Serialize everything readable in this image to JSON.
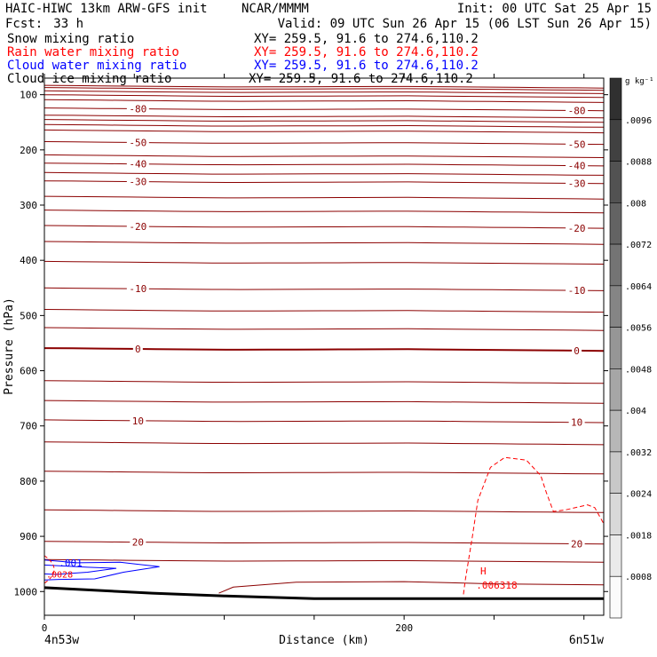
{
  "header": {
    "model": "HAIC-HIWC 13km ARW-GFS init",
    "org": "NCAR/MMMM",
    "init": "Init: 00 UTC Sat 25 Apr 15",
    "fcst_label": "Fcst:",
    "fcst_value": "33 h",
    "valid": "Valid: 09 UTC Sun 26 Apr 15 (06 LST Sun 26 Apr 15)"
  },
  "fields": [
    {
      "name": "Snow mixing ratio",
      "xy": "XY= 259.5, 91.6 to 274.6,110.2",
      "color": "#000000"
    },
    {
      "name": "Rain water mixing ratio",
      "xy": "XY= 259.5, 91.6 to 274.6,110.2",
      "color": "#ff0000"
    },
    {
      "name": "Cloud water mixing ratio",
      "xy": "XY= 259.5, 91.6 to 274.6,110.2",
      "color": "#0000ff"
    },
    {
      "name": "Cloud ice mixing ratio",
      "xy": "XY= 259.5, 91.6 to 274.6,110.2",
      "color": "#000000"
    }
  ],
  "chart_data": {
    "type": "line",
    "xlabel": "Distance (km)",
    "ylabel": "Pressure (hPa)",
    "xlim": [
      0,
      311
    ],
    "ylim": [
      1043,
      70
    ],
    "x_ticks": [
      0,
      200
    ],
    "y_ticks": [
      100,
      200,
      300,
      400,
      500,
      600,
      700,
      800,
      900,
      1000
    ],
    "x_endpoints": {
      "left": "4n53w",
      "right": "6n51w"
    },
    "colorbar": {
      "unit": "g kg⁻¹",
      "labels": [
        ".0096",
        ".0088",
        ".008",
        ".0072",
        ".0064",
        ".0056",
        ".0048",
        ".004",
        ".0032",
        ".0024",
        ".0018",
        ".0008"
      ]
    },
    "isotherm_color": "#8b0000",
    "isotherms": [
      {
        "label": "-80",
        "p": 127
      },
      {
        "label": "-50",
        "p": 188
      },
      {
        "label": "-40",
        "p": 227
      },
      {
        "label": "-30",
        "p": 259
      },
      {
        "label": "-20",
        "p": 340
      },
      {
        "label": "-10",
        "p": 453
      },
      {
        "label": "0",
        "p": 562
      },
      {
        "label": "10",
        "p": 692
      },
      {
        "label": "20",
        "p": 912
      }
    ],
    "isotherm_offsets": [
      {
        "x": 0,
        "dp": -3
      },
      {
        "x": 100,
        "dp": 0
      },
      {
        "x": 200,
        "dp": -1
      },
      {
        "x": 311,
        "dp": 2
      }
    ],
    "isotherm_label_x": [
      52,
      296
    ],
    "extra_isotherms_p": [
      86,
      90,
      96,
      103,
      112,
      140,
      148,
      157,
      167,
      212,
      244,
      287,
      312,
      369,
      405,
      492,
      525,
      621,
      657,
      732,
      785,
      855,
      945
    ],
    "surface_line": {
      "color": "#000000",
      "points": [
        [
          0,
          993
        ],
        [
          60,
          1003
        ],
        [
          100,
          1008
        ],
        [
          150,
          1013
        ],
        [
          200,
          1013
        ],
        [
          250,
          1013
        ],
        [
          311,
          1013
        ]
      ]
    },
    "warm_layer": {
      "color": "#8b0000",
      "points": [
        [
          97,
          1003
        ],
        [
          105,
          992
        ],
        [
          140,
          983
        ],
        [
          200,
          982
        ],
        [
          250,
          986
        ],
        [
          311,
          988
        ]
      ]
    },
    "rain_contour": {
      "color": "#ff0000",
      "points": [
        [
          233,
          1005
        ],
        [
          234,
          980
        ],
        [
          238,
          900
        ],
        [
          241,
          835
        ],
        [
          248,
          775
        ],
        [
          256,
          757
        ],
        [
          268,
          762
        ],
        [
          276,
          790
        ],
        [
          279,
          820
        ],
        [
          283,
          855
        ],
        [
          290,
          852
        ],
        [
          302,
          843
        ],
        [
          306,
          848
        ],
        [
          311,
          877
        ]
      ]
    },
    "rain_max": {
      "label": "H",
      "value": ".006318",
      "x": 244,
      "p": 988
    },
    "cloud_water_contour": {
      "color": "#0000ff",
      "label": ".001",
      "points": [
        [
          0,
          943
        ],
        [
          18,
          948
        ],
        [
          42,
          947
        ],
        [
          64,
          955
        ],
        [
          44,
          965
        ],
        [
          28,
          977
        ],
        [
          8,
          978
        ],
        [
          0,
          979
        ]
      ]
    },
    "cloud_water_inner": {
      "color": "#0000ff",
      "points": [
        [
          0,
          952
        ],
        [
          24,
          956
        ],
        [
          40,
          958
        ],
        [
          24,
          965
        ],
        [
          6,
          969
        ],
        [
          0,
          968
        ]
      ]
    },
    "small_rain_label": ".0028"
  }
}
